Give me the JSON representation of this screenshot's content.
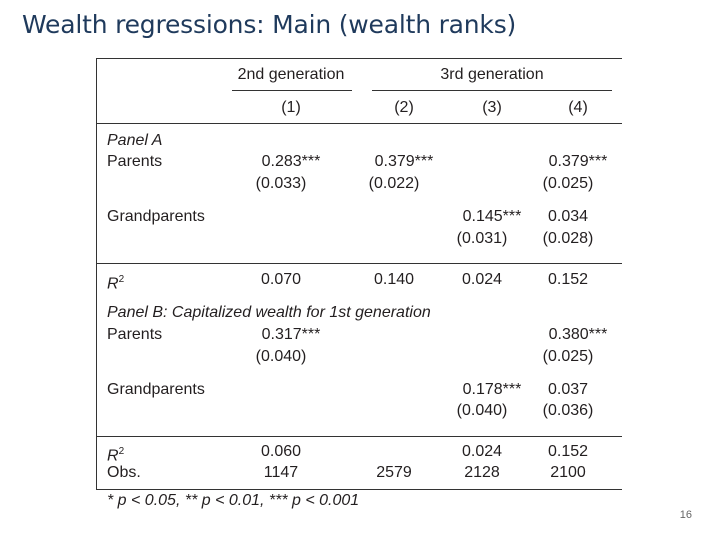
{
  "slide": {
    "title": "Wealth regressions: Main (wealth ranks)",
    "page_number": "16"
  },
  "table": {
    "group_headers": [
      "2nd generation",
      "3rd generation"
    ],
    "column_numbers": [
      "(1)",
      "(2)",
      "(3)",
      "(4)"
    ],
    "panel_a": {
      "label": "Panel A",
      "parents_label": "Parents",
      "parents_coef": [
        "0.283***",
        "0.379***",
        "",
        "0.379***"
      ],
      "parents_se": [
        "(0.033)",
        "(0.022)",
        "",
        "(0.025)"
      ],
      "grandparents_label": "Grandparents",
      "grandparents_coef": [
        "",
        "",
        "0.145***",
        "0.034"
      ],
      "grandparents_se": [
        "",
        "",
        "(0.031)",
        "(0.028)"
      ],
      "r2_label": "R",
      "r2_sup": "2",
      "r2": [
        "0.070",
        "0.140",
        "0.024",
        "0.152"
      ]
    },
    "panel_b": {
      "label": "Panel B: Capitalized wealth for 1st generation",
      "parents_label": "Parents",
      "parents_coef": [
        "0.317***",
        "",
        "",
        "0.380***"
      ],
      "parents_se": [
        "(0.040)",
        "",
        "",
        "(0.025)"
      ],
      "grandparents_label": "Grandparents",
      "grandparents_coef": [
        "",
        "",
        "0.178***",
        "0.037"
      ],
      "grandparents_se": [
        "",
        "",
        "(0.040)",
        "(0.036)"
      ],
      "r2_label": "R",
      "r2_sup": "2",
      "r2": [
        "0.060",
        "",
        "0.024",
        "0.152"
      ],
      "obs_label": "Obs.",
      "obs": [
        "1147",
        "2579",
        "2128",
        "2100"
      ]
    },
    "footnote": "* p < 0.05, ** p < 0.01, *** p < 0.001"
  }
}
